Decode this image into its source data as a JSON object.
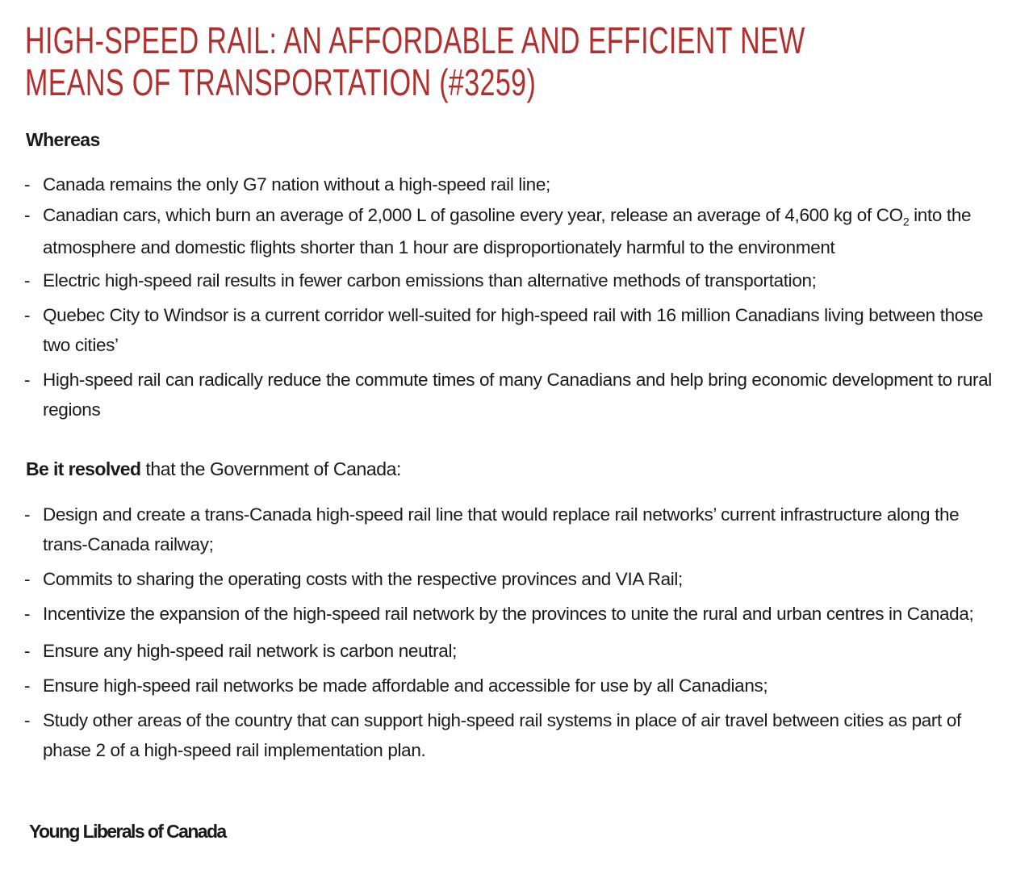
{
  "title": "HIGH-SPEED RAIL: AN AFFORDABLE AND EFFICIENT NEW MEANS OF TRANSPORTATION (#3259)",
  "colors": {
    "title": "#b0302f",
    "text": "#1a1a1a"
  },
  "whereas_heading": "Whereas",
  "whereas": [
    "Canada remains the only G7 nation without a high-speed rail line;",
    {
      "pre": "Canadian cars, which burn an average of 2,000 L of gasoline every year, release an average of 4,600 kg of CO",
      "sub": "2",
      "post": " into the atmosphere and domestic flights shorter than 1 hour are disproportionately harmful to the environment"
    },
    "Electric high-speed rail results in fewer carbon emissions than alternative methods of transportation;",
    "Quebec City to Windsor is a current corridor well-suited for high-speed rail with 16 million Canadians living between those two cities’",
    "High-speed rail can radically reduce the commute times of many Canadians and help bring economic development to rural regions"
  ],
  "resolved": {
    "bold": "Be it resolved",
    "rest": " that the Government of Canada:"
  },
  "resolutions": [
    "Design and create a trans-Canada high-speed rail line that would replace rail networks’ current infrastructure along the trans-Canada railway;",
    "Commits to sharing the operating costs with the respective provinces and VIA Rail;",
    "Incentivize the expansion of the high-speed rail network by the provinces to unite the rural and urban centres in Canada;",
    "Ensure any high-speed rail network is carbon neutral;",
    "Ensure high-speed rail networks be made affordable and accessible for use by all Canadians;",
    "Study other areas of the country that can support high-speed rail systems in place of air travel between cities as part of phase 2 of a high-speed rail implementation plan."
  ],
  "signature": "Young Liberals of Canada"
}
